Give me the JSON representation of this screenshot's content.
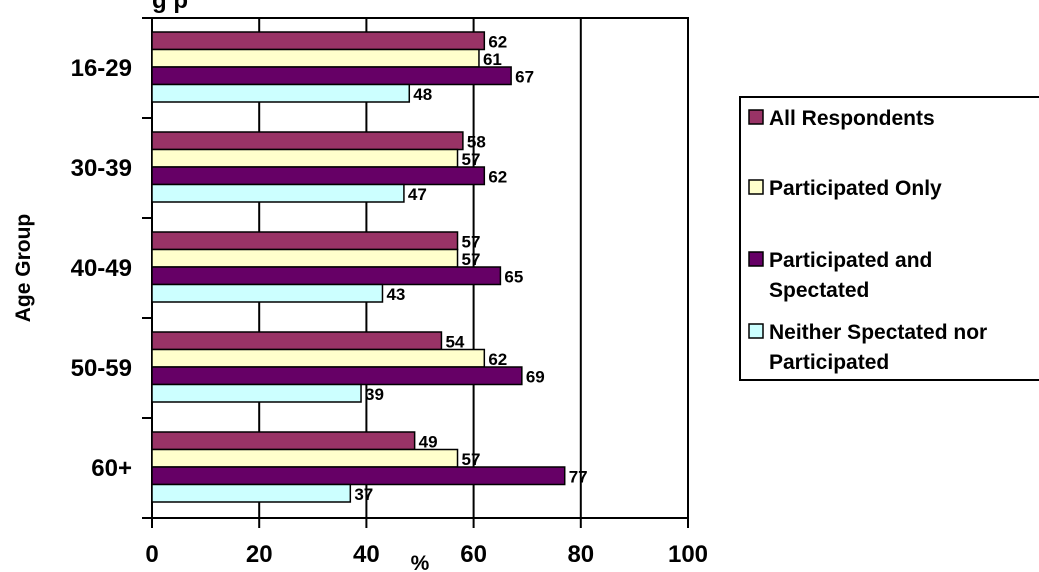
{
  "chart_data": {
    "type": "bar",
    "orientation": "horizontal",
    "title_fragment": "g  p",
    "categories": [
      "16-29",
      "30-39",
      "40-49",
      "50-59",
      "60+"
    ],
    "series": [
      {
        "name": "All Respondents",
        "color": "#993366",
        "values": [
          62,
          58,
          57,
          54,
          49
        ]
      },
      {
        "name": "Participated Only",
        "color": "#FFFFCC",
        "values": [
          61,
          57,
          57,
          62,
          57
        ]
      },
      {
        "name": "Participated and Spectated",
        "color": "#660066",
        "values": [
          67,
          62,
          65,
          69,
          77
        ]
      },
      {
        "name": "Neither Spectated nor Participated",
        "color": "#CCFFFF",
        "values": [
          48,
          47,
          43,
          39,
          37
        ]
      }
    ],
    "xlabel": "%",
    "ylabel": "Age Group",
    "xlim": [
      0,
      100
    ],
    "xticks": [
      0,
      20,
      40,
      60,
      80,
      100
    ],
    "grid": "vertical gridlines",
    "legend_position": "right"
  }
}
